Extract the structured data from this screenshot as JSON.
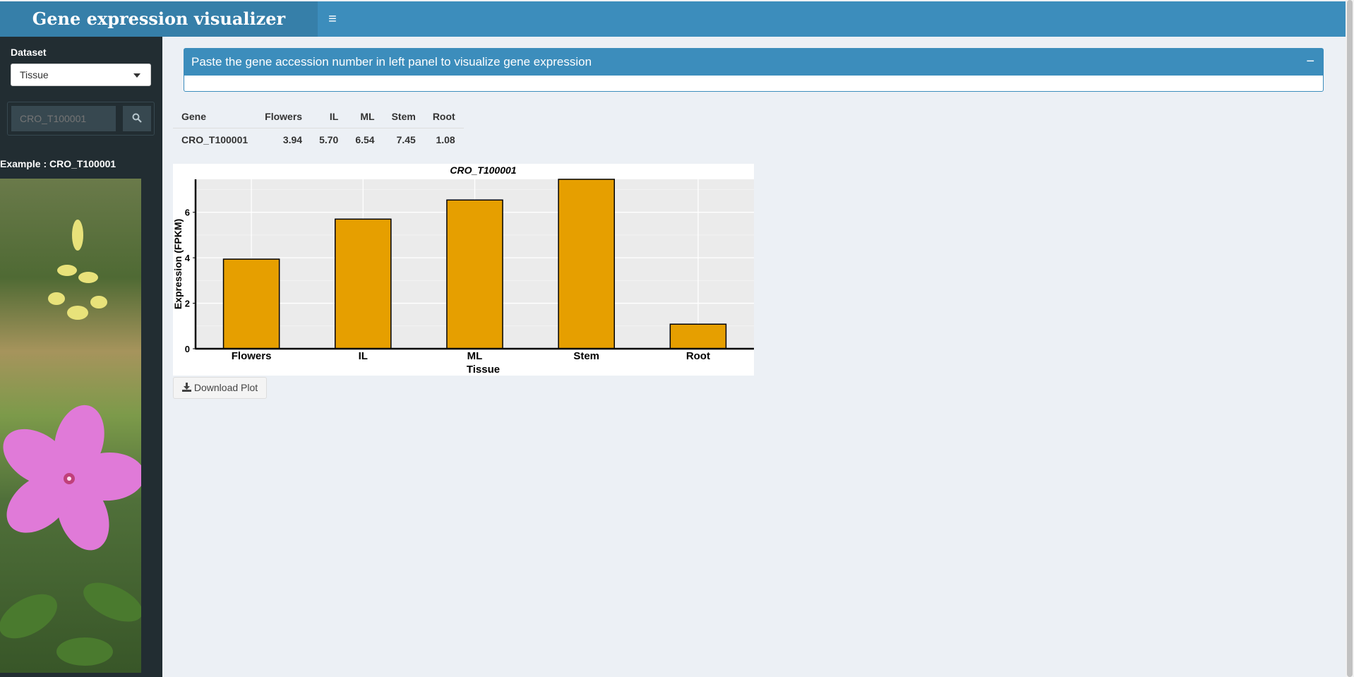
{
  "header": {
    "title": "Gene expression visualizer",
    "menu_icon": "hamburger-icon"
  },
  "sidebar": {
    "dataset_label": "Dataset",
    "dataset_selected": "Tissue",
    "search_placeholder": "CRO_T100001",
    "example_text": "Example : CRO_T100001"
  },
  "box": {
    "title": "Paste the gene accession number in left panel to visualize gene expression",
    "collapse_label": "−"
  },
  "table": {
    "headers": [
      "Gene",
      "Flowers",
      "IL",
      "ML",
      "Stem",
      "Root"
    ],
    "rows": [
      [
        "CRO_T100001",
        "3.94",
        "5.70",
        "6.54",
        "7.45",
        "1.08"
      ]
    ]
  },
  "download_label": "Download Plot",
  "colors": {
    "header": "#3c8dbc",
    "logo_bg": "#367fa9",
    "sidebar": "#222d32",
    "bar_fill": "#e69f00"
  },
  "chart_data": {
    "type": "bar",
    "title": "CRO_T100001",
    "xlabel": "Tissue",
    "ylabel": "Expression (FPKM)",
    "categories": [
      "Flowers",
      "IL",
      "ML",
      "Stem",
      "Root"
    ],
    "values": [
      3.94,
      5.7,
      6.54,
      7.45,
      1.08
    ],
    "yticks": [
      0,
      2,
      4,
      6
    ],
    "ylim": [
      0,
      7.45
    ],
    "grid": true,
    "legend": "none"
  }
}
